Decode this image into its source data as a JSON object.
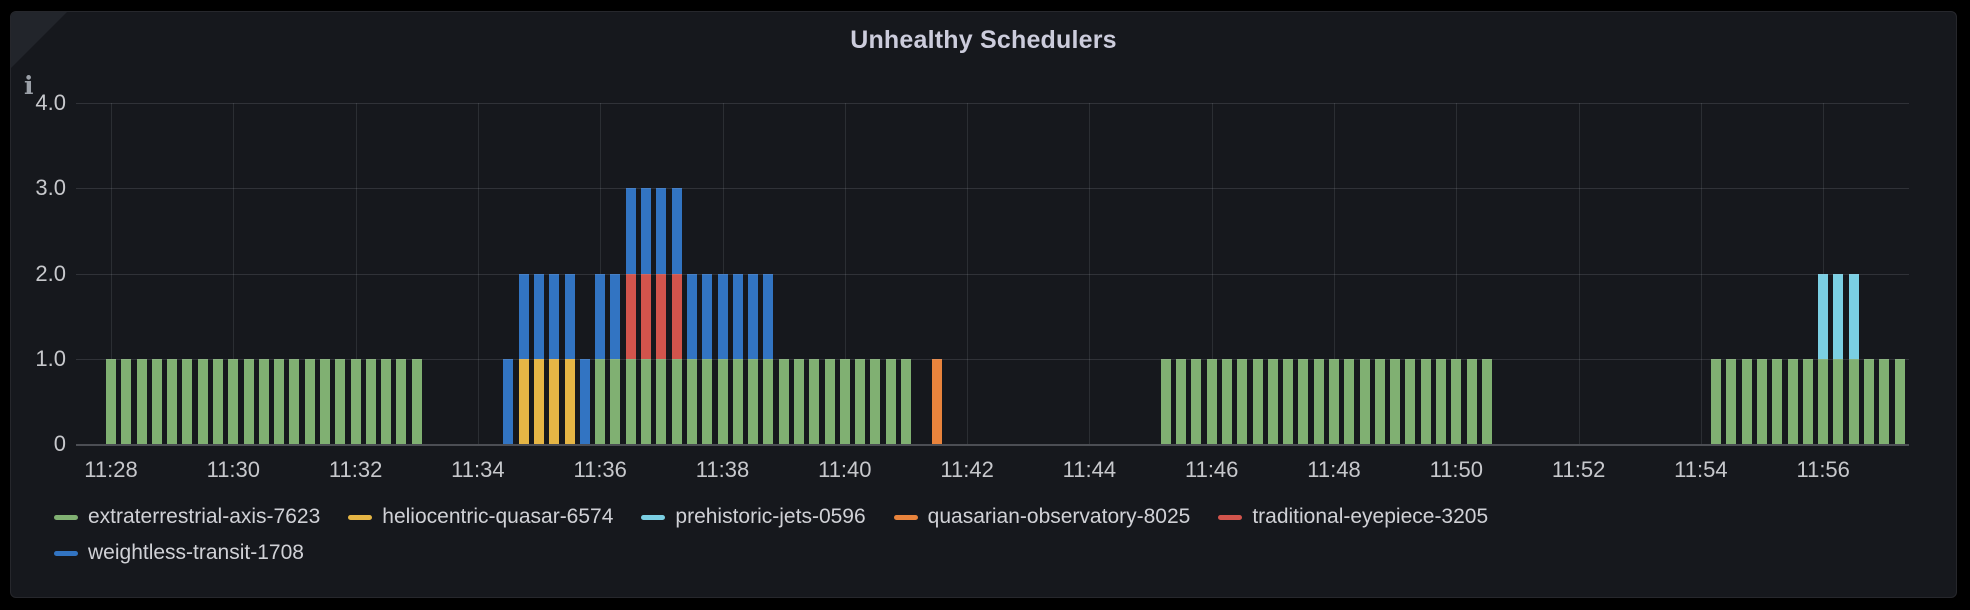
{
  "panel": {
    "title": "Unhealthy Schedulers",
    "info_icon": "i"
  },
  "chart_data": {
    "type": "bar",
    "stacked": true,
    "title": "Unhealthy Schedulers",
    "xlabel": "",
    "ylabel": "",
    "ylim": [
      0,
      4
    ],
    "grid": true,
    "legend_position": "bottom-left",
    "interval_seconds": 15,
    "bar_value": 1,
    "x_ticks": [
      "11:28",
      "11:30",
      "11:32",
      "11:34",
      "11:36",
      "11:38",
      "11:40",
      "11:42",
      "11:44",
      "11:46",
      "11:48",
      "11:50",
      "11:52",
      "11:54",
      "11:56"
    ],
    "y_ticks": [
      {
        "value": 0,
        "label": "0"
      },
      {
        "value": 1,
        "label": "1.0"
      },
      {
        "value": 2,
        "label": "2.0"
      },
      {
        "value": 3,
        "label": "3.0"
      },
      {
        "value": 4,
        "label": "4.0"
      }
    ],
    "series": [
      {
        "name": "extraterrestrial-axis-7623",
        "color": "#80B072",
        "runs": [
          [
            "11:28:00",
            "11:33:00"
          ],
          [
            "11:36:00",
            "11:41:00"
          ],
          [
            "11:45:15",
            "11:50:30"
          ],
          [
            "11:54:15",
            "11:57:15"
          ]
        ]
      },
      {
        "name": "heliocentric-quasar-6574",
        "color": "#E5B545",
        "runs": [
          [
            "11:34:45",
            "11:35:30"
          ]
        ]
      },
      {
        "name": "prehistoric-jets-0596",
        "color": "#7BCFE3",
        "runs": [
          [
            "11:56:00",
            "11:56:30"
          ]
        ]
      },
      {
        "name": "quasarian-observatory-8025",
        "color": "#E8833C",
        "runs": [
          [
            "11:41:30",
            "11:41:30"
          ]
        ]
      },
      {
        "name": "traditional-eyepiece-3205",
        "color": "#D2544C",
        "runs": [
          [
            "11:36:30",
            "11:37:15"
          ]
        ]
      },
      {
        "name": "weightless-transit-1708",
        "color": "#3274C2",
        "runs": [
          [
            "11:34:30",
            "11:38:45"
          ]
        ]
      }
    ]
  }
}
